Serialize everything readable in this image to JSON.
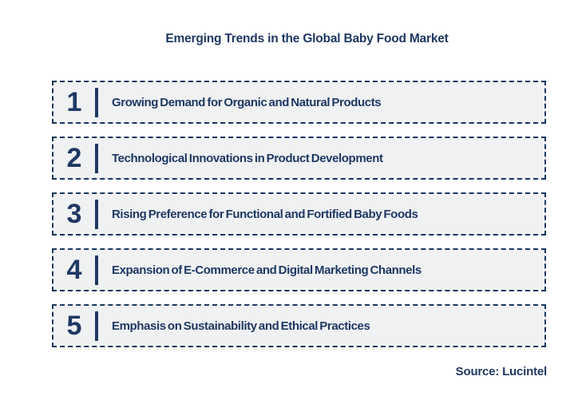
{
  "title": "Emerging Trends in the Global Baby Food Market",
  "source": "Source: Lucintel",
  "colors": {
    "navy_text": "#1f3864",
    "dashed_border": "#17365d",
    "box_background": "#f0f1f2",
    "page_background": "#ffffff"
  },
  "trends": [
    {
      "number": "1",
      "label": "Growing Demand for Organic and Natural Products"
    },
    {
      "number": "2",
      "label": "Technological Innovations in Product Development"
    },
    {
      "number": "3",
      "label": "Rising Preference for Functional and Fortified Baby Foods"
    },
    {
      "number": "4",
      "label": "Expansion of E-Commerce and Digital Marketing Channels"
    },
    {
      "number": "5",
      "label": "Emphasis on Sustainability and Ethical Practices"
    }
  ]
}
